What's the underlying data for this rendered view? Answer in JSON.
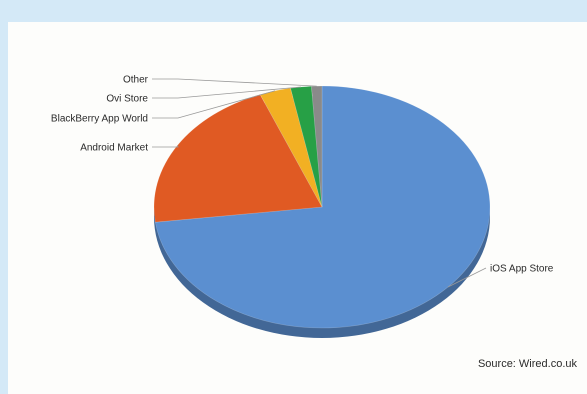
{
  "chart_data": {
    "type": "pie",
    "style": "3d",
    "title": "",
    "categories": [
      "iOS App Store",
      "Android Market",
      "BlackBerry App World",
      "Ovi Store",
      "Other"
    ],
    "values": [
      73,
      21,
      3,
      2,
      1
    ],
    "unit": "percent",
    "colors": [
      "#5b8fd0",
      "#e05a23",
      "#f2b023",
      "#27a046",
      "#8a8a8a"
    ]
  },
  "footer": {
    "source": "Source: Wired.co.uk"
  }
}
